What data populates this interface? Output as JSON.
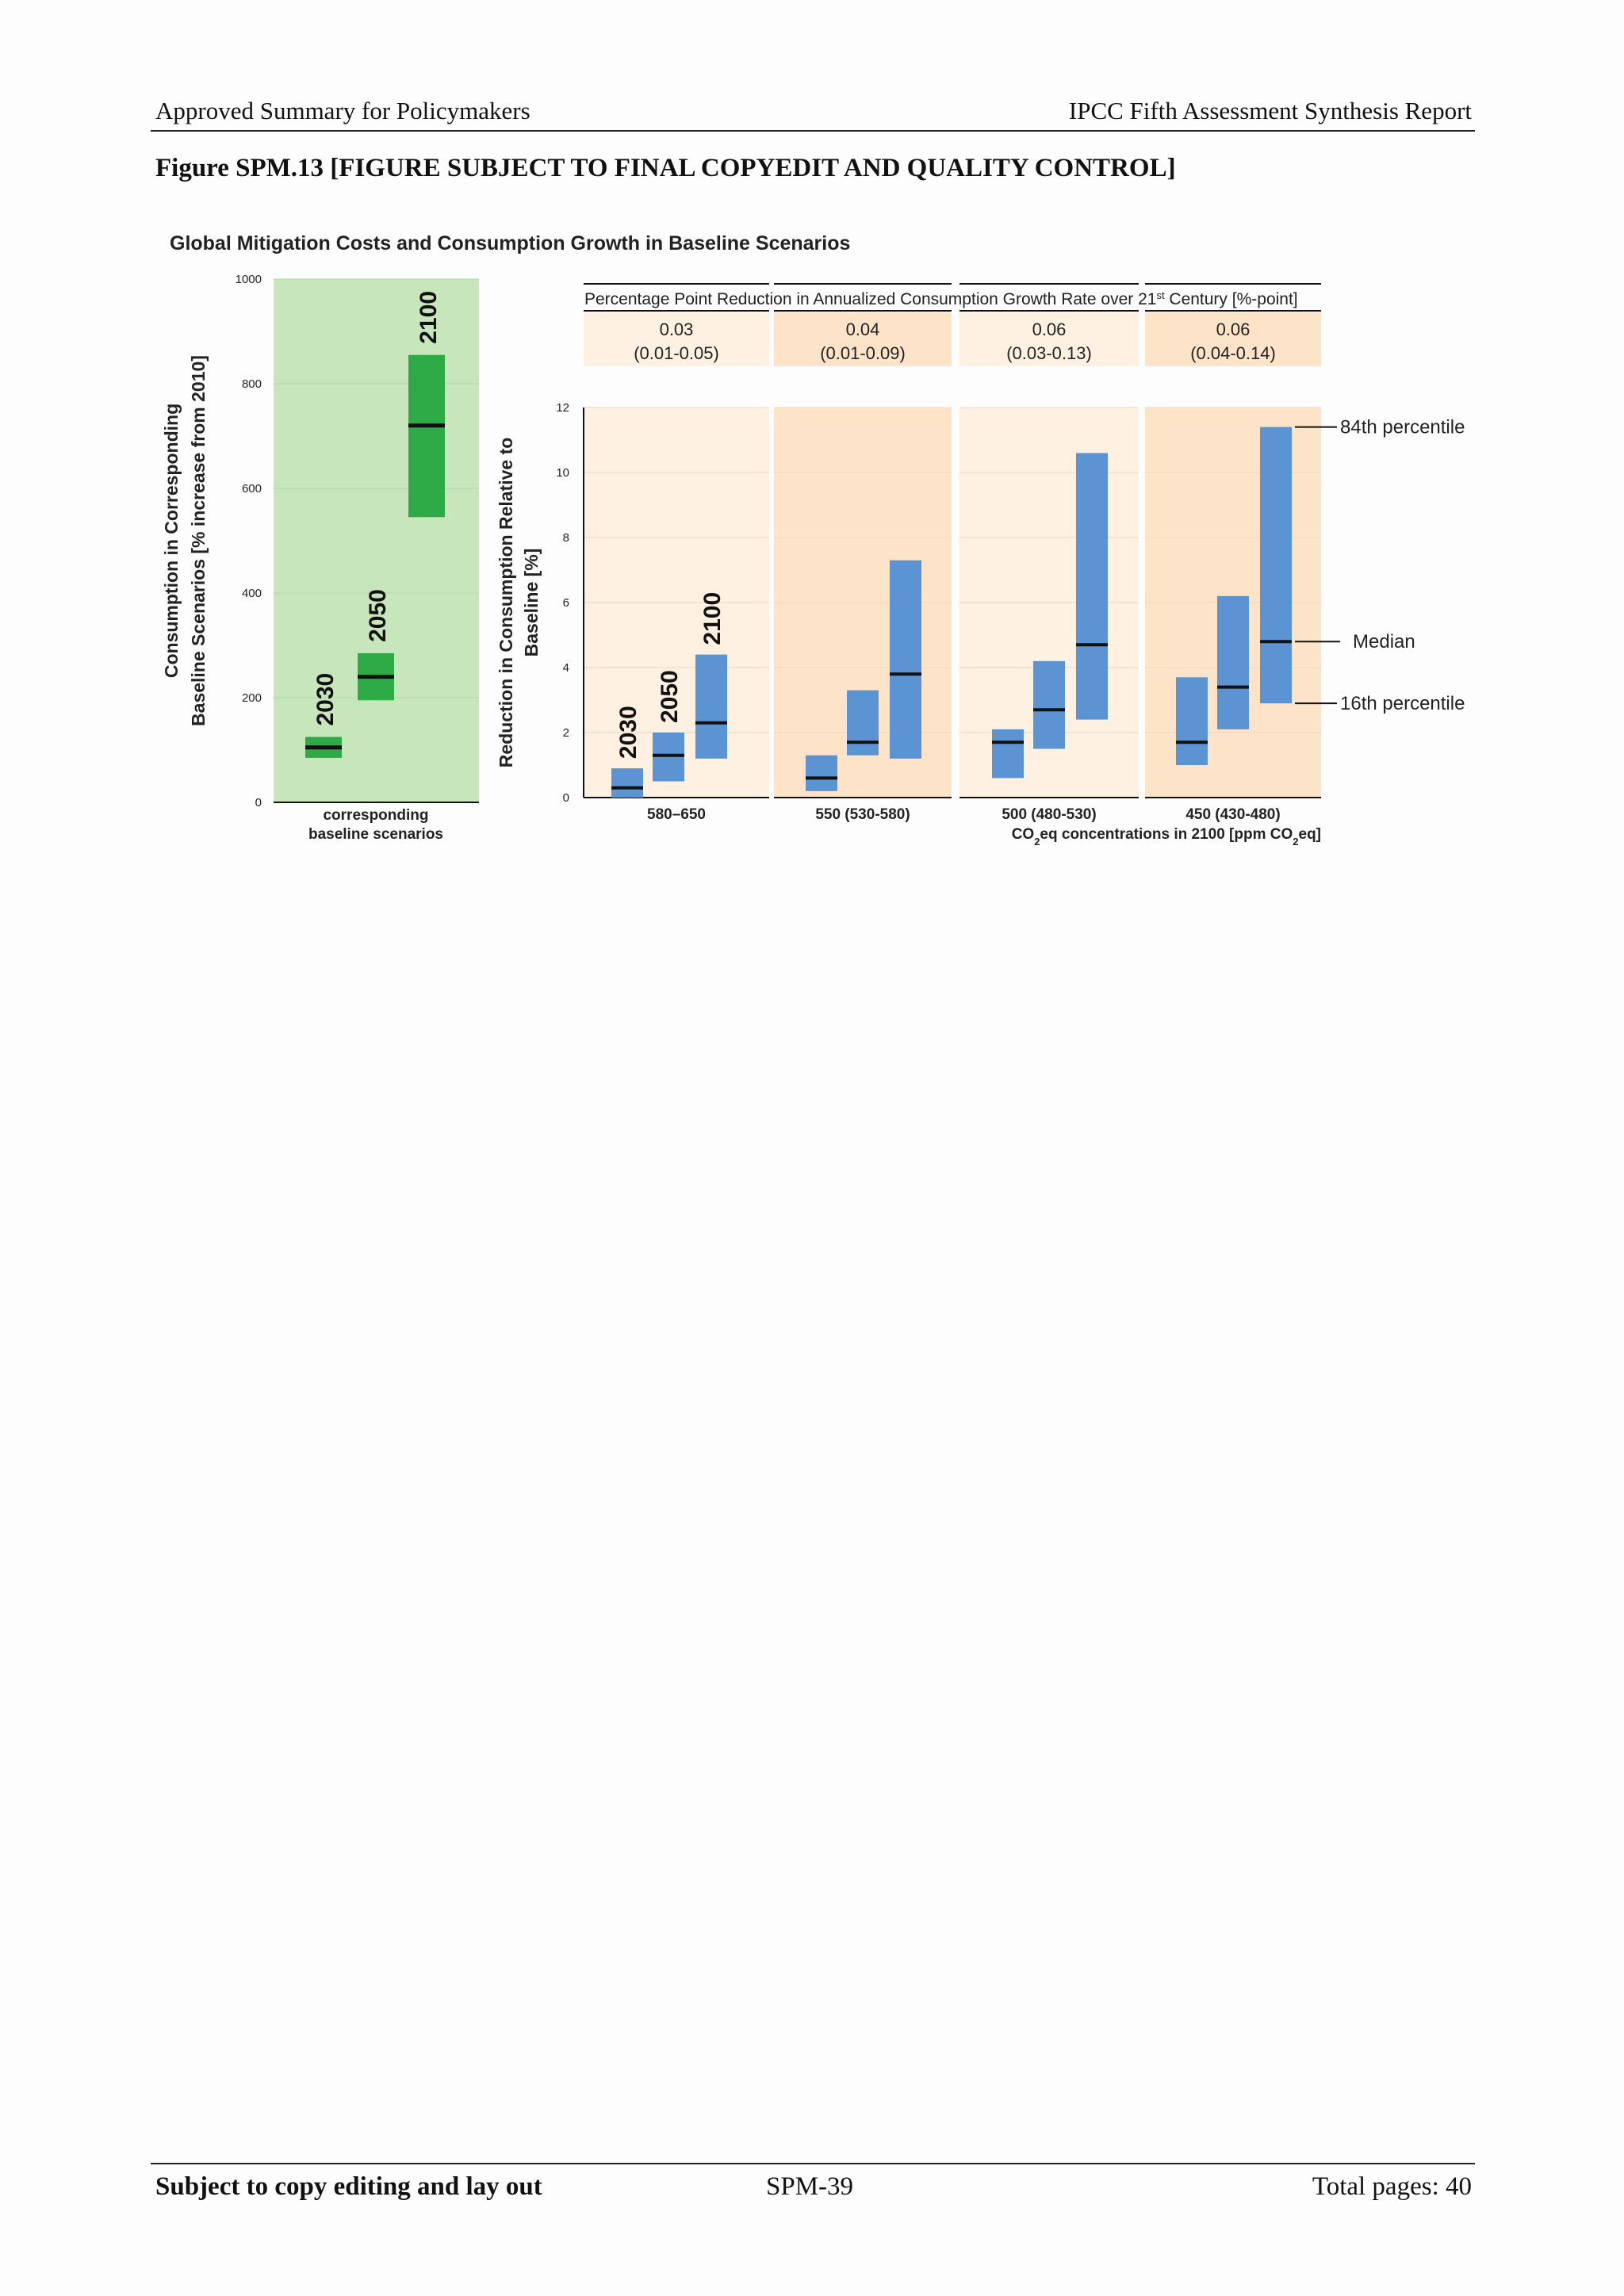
{
  "header": {
    "left": "Approved Summary for Policymakers",
    "right": "IPCC Fifth Assessment Synthesis Report"
  },
  "figure_caption": "Figure SPM.13 [FIGURE SUBJECT TO FINAL COPYEDIT AND QUALITY CONTROL]",
  "footer": {
    "left": "Subject to copy editing and lay out",
    "center": "SPM-39",
    "right": "Total pages: 40"
  },
  "colors": {
    "green_panel": "#c8e6bb",
    "green_bar": "#2eaa47",
    "blue_bar": "#5b93d3",
    "orange_panel": "#fde3c8",
    "light_panel": "#fef1e2",
    "median_line": "#111111"
  },
  "chart_data": [
    {
      "type": "bar",
      "subtype": "range",
      "title": "Global Mitigation Costs and Consumption Growth in Baseline Scenarios",
      "ylabel_lines": [
        "Consumption in Corresponding",
        "Baseline Scenarios [% increase from 2010]"
      ],
      "xlabel_lines": [
        "corresponding",
        "baseline scenarios"
      ],
      "ylim": [
        0,
        1000
      ],
      "yticks": [
        "0",
        "200",
        "400",
        "600",
        "800",
        "1000"
      ],
      "series": [
        {
          "name": "2030",
          "low": 85,
          "median": 105,
          "high": 125
        },
        {
          "name": "2050",
          "low": 195,
          "median": 240,
          "high": 285
        },
        {
          "name": "2100",
          "low": 545,
          "median": 720,
          "high": 855
        }
      ]
    },
    {
      "type": "bar",
      "subtype": "range",
      "ylabel_lines": [
        "Reduction in Consumption Relative to",
        "Baseline [%]"
      ],
      "ylim": [
        0,
        12
      ],
      "yticks": [
        "0",
        "2",
        "4",
        "6",
        "8",
        "10",
        "12"
      ],
      "growth_header": "Percentage Point Reduction in Annualized Consumption Growth Rate over 21",
      "growth_header_sup": "st",
      "growth_header_tail": " Century [%-point]",
      "xlabel": {
        "prefix": "CO",
        "sub1": "2",
        "mid": "eq concentrations in 2100 [ppm CO",
        "sub2": "2",
        "suffix": "eq]"
      },
      "legend": {
        "high": "84th percentile",
        "median": "Median",
        "low": "16th percentile"
      },
      "years": [
        "2030",
        "2050",
        "2100"
      ],
      "groups": [
        {
          "category": "580–650",
          "growth_rate": "0.03",
          "growth_range": "(0.01-0.05)",
          "bars": [
            {
              "year": "2030",
              "low": 0.0,
              "median": 0.3,
              "high": 0.9
            },
            {
              "year": "2050",
              "low": 0.5,
              "median": 1.3,
              "high": 2.0
            },
            {
              "year": "2100",
              "low": 1.2,
              "median": 2.3,
              "high": 4.4
            }
          ]
        },
        {
          "category": "550 (530-580)",
          "growth_rate": "0.04",
          "growth_range": "(0.01-0.09)",
          "bars": [
            {
              "year": "2030",
              "low": 0.2,
              "median": 0.6,
              "high": 1.3
            },
            {
              "year": "2050",
              "low": 1.3,
              "median": 1.7,
              "high": 3.3
            },
            {
              "year": "2100",
              "low": 1.2,
              "median": 3.8,
              "high": 7.3
            }
          ]
        },
        {
          "category": "500 (480-530)",
          "growth_rate": "0.06",
          "growth_range": "(0.03-0.13)",
          "bars": [
            {
              "year": "2030",
              "low": 0.6,
              "median": 1.7,
              "high": 2.1
            },
            {
              "year": "2050",
              "low": 1.5,
              "median": 2.7,
              "high": 4.2
            },
            {
              "year": "2100",
              "low": 2.4,
              "median": 4.7,
              "high": 10.6
            }
          ]
        },
        {
          "category": "450 (430-480)",
          "growth_rate": "0.06",
          "growth_range": "(0.04-0.14)",
          "bars": [
            {
              "year": "2030",
              "low": 1.0,
              "median": 1.7,
              "high": 3.7
            },
            {
              "year": "2050",
              "low": 2.1,
              "median": 3.4,
              "high": 6.2
            },
            {
              "year": "2100",
              "low": 2.9,
              "median": 4.8,
              "high": 11.4
            }
          ]
        }
      ]
    }
  ]
}
